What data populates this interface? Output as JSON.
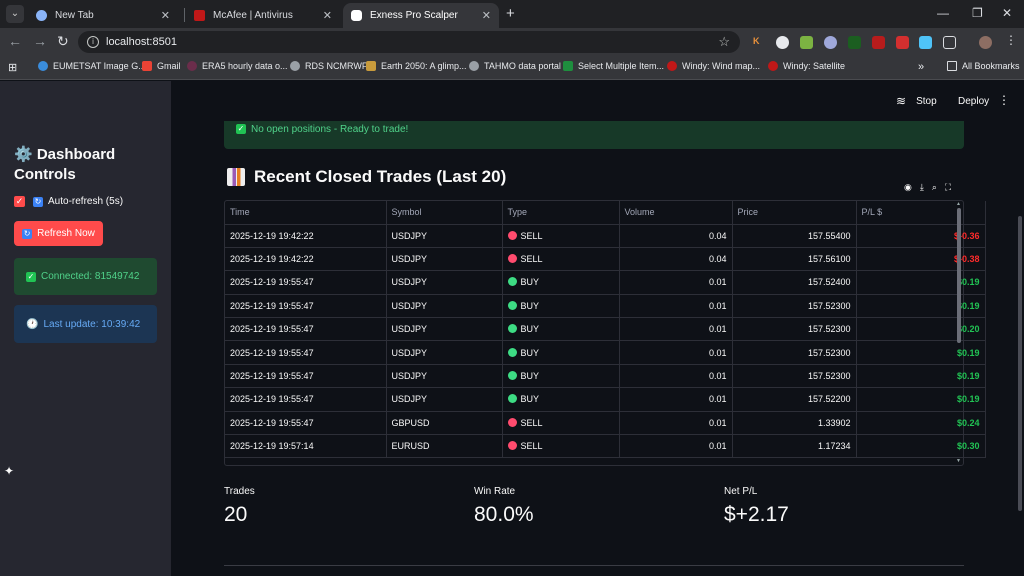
{
  "browser": {
    "tabs": [
      {
        "title": "New Tab",
        "favicon_color": "#8ab4f8"
      },
      {
        "title": "McAfee | Antivirus",
        "favicon_color": "#c01818"
      },
      {
        "title": "Exness Pro Scalper",
        "favicon_color": "#ffffff"
      }
    ],
    "url": "localhost:8501",
    "bookmarks": [
      {
        "label": "EUMETSAT Image G...",
        "color": "#3a8ddd"
      },
      {
        "label": "Gmail",
        "color": "#ea4335"
      },
      {
        "label": "ERA5 hourly data o...",
        "color": "#6b2d4b"
      },
      {
        "label": "RDS NCMRWF",
        "color": "#9aa0a6"
      },
      {
        "label": "Earth 2050: A glimp...",
        "color": "#c89b3c"
      },
      {
        "label": "TAHMO data portal",
        "color": "#9aa0a6"
      },
      {
        "label": "Select Multiple Item...",
        "color": "#1e8e3e"
      },
      {
        "label": "Windy: Wind map...",
        "color": "#c01818"
      },
      {
        "label": "Windy: Satellite",
        "color": "#c01818"
      }
    ],
    "all_bookmarks": "All Bookmarks"
  },
  "header": {
    "stop_label": "Stop",
    "deploy_label": "Deploy"
  },
  "sidebar": {
    "title_line1": "⚙️ Dashboard",
    "title_line2": "Controls",
    "auto_refresh_label": "Auto-refresh (5s)",
    "refresh_button": "Refresh Now",
    "connected": "Connected: 81549742",
    "last_update": "Last update: 10:39:42"
  },
  "main": {
    "positions_alert": "No open positions - Ready to trade!",
    "trades_title": "Recent Closed Trades (Last 20)",
    "columns": [
      "Time",
      "Symbol",
      "Type",
      "Volume",
      "Price",
      "P/L $"
    ],
    "rows": [
      {
        "time": "2025-12-19 19:42:22",
        "symbol": "USDJPY",
        "type": "SELL",
        "volume": "0.04",
        "price": "157.55400",
        "pl": "$-0.36"
      },
      {
        "time": "2025-12-19 19:42:22",
        "symbol": "USDJPY",
        "type": "SELL",
        "volume": "0.04",
        "price": "157.56100",
        "pl": "$-0.38"
      },
      {
        "time": "2025-12-19 19:55:47",
        "symbol": "USDJPY",
        "type": "BUY",
        "volume": "0.01",
        "price": "157.52400",
        "pl": "$0.19"
      },
      {
        "time": "2025-12-19 19:55:47",
        "symbol": "USDJPY",
        "type": "BUY",
        "volume": "0.01",
        "price": "157.52300",
        "pl": "$0.19"
      },
      {
        "time": "2025-12-19 19:55:47",
        "symbol": "USDJPY",
        "type": "BUY",
        "volume": "0.01",
        "price": "157.52300",
        "pl": "$0.20"
      },
      {
        "time": "2025-12-19 19:55:47",
        "symbol": "USDJPY",
        "type": "BUY",
        "volume": "0.01",
        "price": "157.52300",
        "pl": "$0.19"
      },
      {
        "time": "2025-12-19 19:55:47",
        "symbol": "USDJPY",
        "type": "BUY",
        "volume": "0.01",
        "price": "157.52300",
        "pl": "$0.19"
      },
      {
        "time": "2025-12-19 19:55:47",
        "symbol": "USDJPY",
        "type": "BUY",
        "volume": "0.01",
        "price": "157.52200",
        "pl": "$0.19"
      },
      {
        "time": "2025-12-19 19:55:47",
        "symbol": "GBPUSD",
        "type": "SELL",
        "volume": "0.01",
        "price": "1.33902",
        "pl": "$0.24"
      },
      {
        "time": "2025-12-19 19:57:14",
        "symbol": "EURUSD",
        "type": "SELL",
        "volume": "0.01",
        "price": "1.17234",
        "pl": "$0.30"
      }
    ],
    "metrics": [
      {
        "label": "Trades",
        "value": "20"
      },
      {
        "label": "Win Rate",
        "value": "80.0%"
      },
      {
        "label": "Net P/L",
        "value": "$+2.17"
      }
    ]
  },
  "colors": {
    "accent": "#ff4b4b",
    "loss": "#ff2b2b",
    "profit": "#21c354",
    "sell_dot": "#ff4b6e",
    "buy_dot": "#3ddc84"
  }
}
